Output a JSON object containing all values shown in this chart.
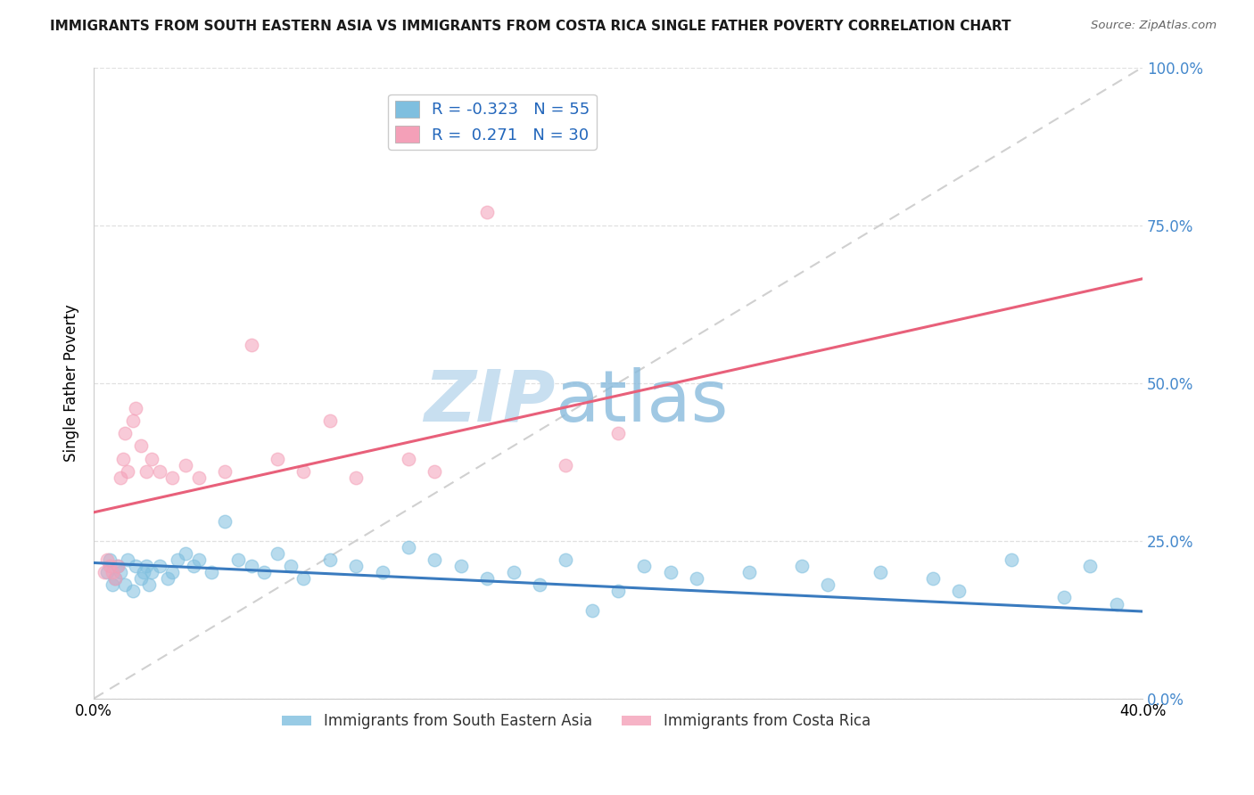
{
  "title": "IMMIGRANTS FROM SOUTH EASTERN ASIA VS IMMIGRANTS FROM COSTA RICA SINGLE FATHER POVERTY CORRELATION CHART",
  "source": "Source: ZipAtlas.com",
  "ylabel": "Single Father Poverty",
  "legend_entries": [
    {
      "color": "#7fbfdf",
      "R": "-0.323",
      "N": "55",
      "label": "Immigrants from South Eastern Asia"
    },
    {
      "color": "#f4a0b8",
      "R": "0.271",
      "N": "30",
      "label": "Immigrants from Costa Rica"
    }
  ],
  "blue_color": "#7fbfdf",
  "pink_color": "#f4a0b8",
  "blue_line_color": "#3a7bbf",
  "pink_line_color": "#e8607a",
  "diagonal_color": "#d0d0d0",
  "xlim": [
    0.0,
    0.4
  ],
  "ylim": [
    0.0,
    1.0
  ],
  "blue_line_x0": 0.0,
  "blue_line_y0": 0.215,
  "blue_line_x1": 0.4,
  "blue_line_y1": 0.138,
  "pink_line_x0": 0.0,
  "pink_line_y0": 0.295,
  "pink_line_x1": 0.4,
  "pink_line_y1": 0.665,
  "right_ytick_vals": [
    1.0,
    0.75,
    0.5,
    0.25,
    0.0
  ],
  "grid_ytick_vals": [
    0.0,
    0.25,
    0.5,
    0.75,
    1.0
  ],
  "blue_scatter_x": [
    0.005,
    0.006,
    0.007,
    0.008,
    0.009,
    0.01,
    0.012,
    0.013,
    0.015,
    0.016,
    0.018,
    0.019,
    0.02,
    0.021,
    0.022,
    0.025,
    0.028,
    0.03,
    0.032,
    0.035,
    0.038,
    0.04,
    0.045,
    0.05,
    0.055,
    0.06,
    0.065,
    0.07,
    0.075,
    0.08,
    0.09,
    0.1,
    0.11,
    0.12,
    0.13,
    0.14,
    0.15,
    0.16,
    0.17,
    0.18,
    0.19,
    0.2,
    0.21,
    0.22,
    0.23,
    0.25,
    0.27,
    0.28,
    0.3,
    0.32,
    0.33,
    0.35,
    0.37,
    0.38,
    0.39
  ],
  "blue_scatter_y": [
    0.2,
    0.22,
    0.18,
    0.19,
    0.21,
    0.2,
    0.18,
    0.22,
    0.17,
    0.21,
    0.19,
    0.2,
    0.21,
    0.18,
    0.2,
    0.21,
    0.19,
    0.2,
    0.22,
    0.23,
    0.21,
    0.22,
    0.2,
    0.28,
    0.22,
    0.21,
    0.2,
    0.23,
    0.21,
    0.19,
    0.22,
    0.21,
    0.2,
    0.24,
    0.22,
    0.21,
    0.19,
    0.2,
    0.18,
    0.22,
    0.14,
    0.17,
    0.21,
    0.2,
    0.19,
    0.2,
    0.21,
    0.18,
    0.2,
    0.19,
    0.17,
    0.22,
    0.16,
    0.21,
    0.15
  ],
  "pink_scatter_x": [
    0.004,
    0.005,
    0.006,
    0.007,
    0.008,
    0.009,
    0.01,
    0.011,
    0.012,
    0.013,
    0.015,
    0.016,
    0.018,
    0.02,
    0.022,
    0.025,
    0.03,
    0.035,
    0.04,
    0.05,
    0.06,
    0.07,
    0.08,
    0.09,
    0.1,
    0.12,
    0.13,
    0.15,
    0.18,
    0.2
  ],
  "pink_scatter_y": [
    0.2,
    0.22,
    0.21,
    0.2,
    0.19,
    0.21,
    0.35,
    0.38,
    0.42,
    0.36,
    0.44,
    0.46,
    0.4,
    0.36,
    0.38,
    0.36,
    0.35,
    0.37,
    0.35,
    0.36,
    0.56,
    0.38,
    0.36,
    0.44,
    0.35,
    0.38,
    0.36,
    0.77,
    0.37,
    0.42
  ]
}
